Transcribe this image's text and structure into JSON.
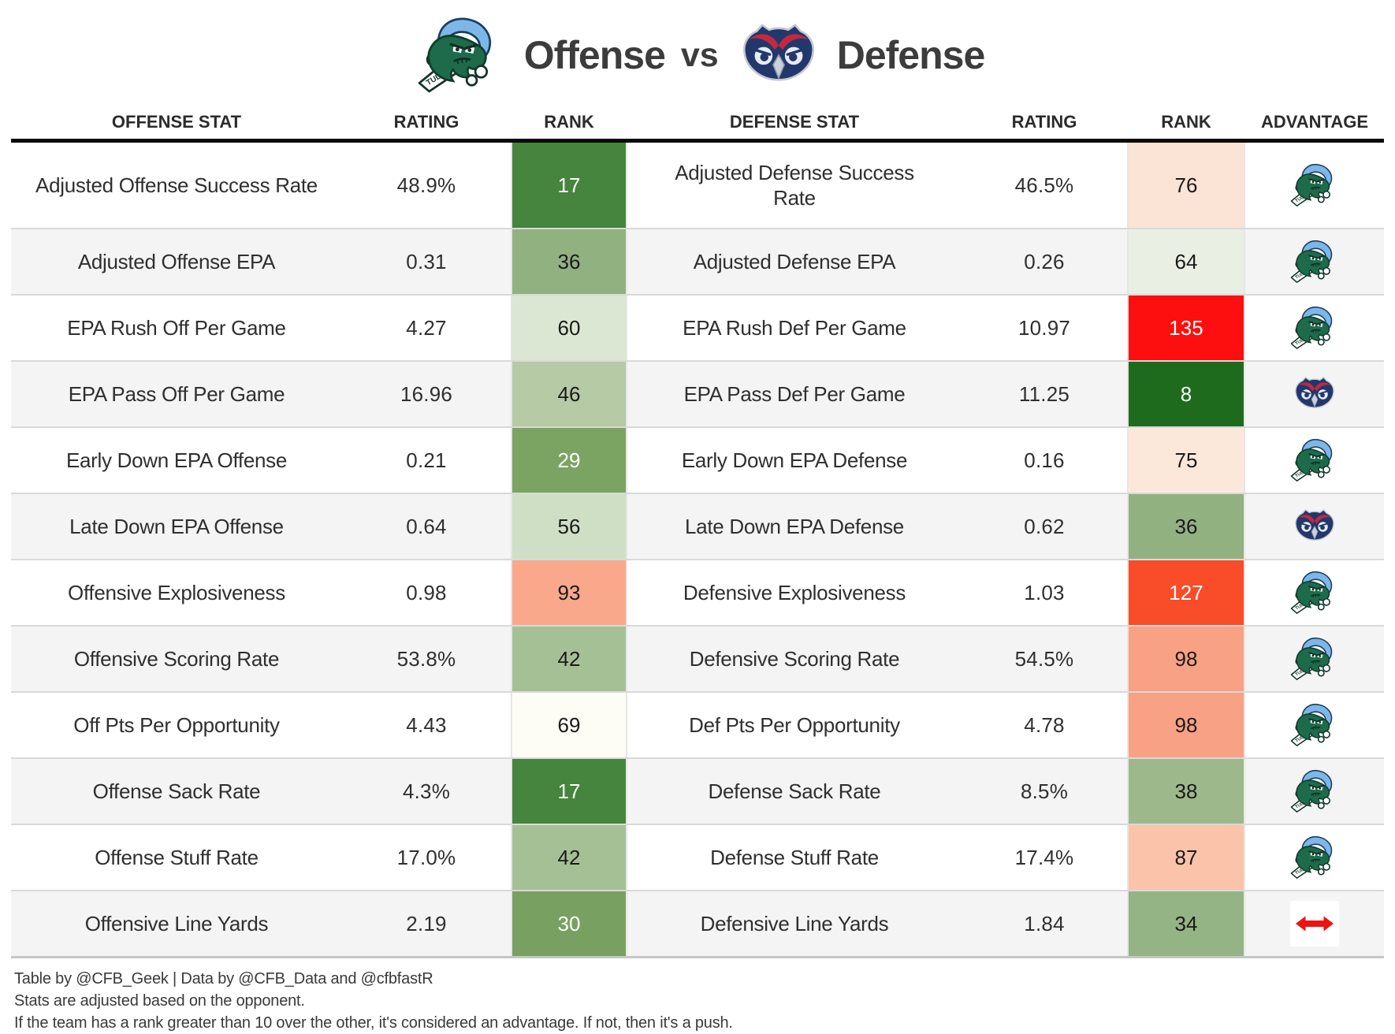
{
  "title": {
    "left_logo": "tulane-green-wave-logo",
    "left_label": "Offense",
    "vs_label": "vs",
    "right_logo": "fau-owls-logo",
    "right_label": "Defense"
  },
  "chart_data": {
    "type": "table",
    "columns": [
      "OFFENSE STAT",
      "RATING",
      "RANK",
      "DEFENSE STAT",
      "RATING",
      "RANK",
      "ADVANTAGE"
    ],
    "rows": [
      {
        "offense_stat": "Adjusted Offense Success Rate",
        "offense_rating": "48.9%",
        "offense_rank": "17",
        "offense_rank_bg": "#45853d",
        "offense_rank_color": "#ffffff",
        "defense_stat": "Adjusted Defense Success Rate",
        "defense_rating": "46.5%",
        "defense_rank": "76",
        "defense_rank_bg": "#fbe3d5",
        "defense_rank_color": "#1a1a1a",
        "advantage": "offense"
      },
      {
        "offense_stat": "Adjusted Offense EPA",
        "offense_rating": "0.31",
        "offense_rank": "36",
        "offense_rank_bg": "#92b181",
        "offense_rank_color": "#1a1a1a",
        "defense_stat": "Adjusted Defense EPA",
        "defense_rating": "0.26",
        "defense_rank": "64",
        "defense_rank_bg": "#e9efe3",
        "defense_rank_color": "#1a1a1a",
        "advantage": "offense"
      },
      {
        "offense_stat": "EPA Rush Off Per Game",
        "offense_rating": "4.27",
        "offense_rank": "60",
        "offense_rank_bg": "#dbe7d2",
        "offense_rank_color": "#1a1a1a",
        "defense_stat": "EPA Rush Def Per Game",
        "defense_rating": "10.97",
        "defense_rank": "135",
        "defense_rank_bg": "#fc0f0e",
        "defense_rank_color": "#ffffff",
        "advantage": "offense"
      },
      {
        "offense_stat": "EPA Pass Off Per Game",
        "offense_rating": "16.96",
        "offense_rank": "46",
        "offense_rank_bg": "#b5caa5",
        "offense_rank_color": "#1a1a1a",
        "defense_stat": "EPA Pass Def Per Game",
        "defense_rating": "11.25",
        "defense_rank": "8",
        "defense_rank_bg": "#1e6b1d",
        "defense_rank_color": "#ffffff",
        "advantage": "defense"
      },
      {
        "offense_stat": "Early Down EPA Offense",
        "offense_rating": "0.21",
        "offense_rank": "29",
        "offense_rank_bg": "#7ba463",
        "offense_rank_color": "#ffffff",
        "defense_stat": "Early Down EPA Defense",
        "defense_rating": "0.16",
        "defense_rank": "75",
        "defense_rank_bg": "#fce8db",
        "defense_rank_color": "#1a1a1a",
        "advantage": "offense"
      },
      {
        "offense_stat": "Late Down EPA Offense",
        "offense_rating": "0.64",
        "offense_rank": "56",
        "offense_rank_bg": "#cfdfc6",
        "offense_rank_color": "#1a1a1a",
        "defense_stat": "Late Down EPA Defense",
        "defense_rating": "0.62",
        "defense_rank": "36",
        "defense_rank_bg": "#92b181",
        "defense_rank_color": "#1a1a1a",
        "advantage": "defense"
      },
      {
        "offense_stat": "Offensive Explosiveness",
        "offense_rating": "0.98",
        "offense_rank": "93",
        "offense_rank_bg": "#f9a88c",
        "offense_rank_color": "#1a1a1a",
        "defense_stat": "Defensive Explosiveness",
        "defense_rating": "1.03",
        "defense_rank": "127",
        "defense_rank_bg": "#f94c28",
        "defense_rank_color": "#ffffff",
        "advantage": "offense"
      },
      {
        "offense_stat": "Offensive Scoring Rate",
        "offense_rating": "53.8%",
        "offense_rank": "42",
        "offense_rank_bg": "#a6c095",
        "offense_rank_color": "#1a1a1a",
        "defense_stat": "Defensive Scoring Rate",
        "defense_rating": "54.5%",
        "defense_rank": "98",
        "defense_rank_bg": "#f9a184",
        "defense_rank_color": "#1a1a1a",
        "advantage": "offense"
      },
      {
        "offense_stat": "Off Pts Per Opportunity",
        "offense_rating": "4.43",
        "offense_rank": "69",
        "offense_rank_bg": "#fdfcf5",
        "offense_rank_color": "#1a1a1a",
        "defense_stat": "Def Pts Per Opportunity",
        "defense_rating": "4.78",
        "defense_rank": "98",
        "defense_rank_bg": "#f9a184",
        "defense_rank_color": "#1a1a1a",
        "advantage": "offense"
      },
      {
        "offense_stat": "Offense Sack Rate",
        "offense_rating": "4.3%",
        "offense_rank": "17",
        "offense_rank_bg": "#45853d",
        "offense_rank_color": "#ffffff",
        "defense_stat": "Defense Sack Rate",
        "defense_rating": "8.5%",
        "defense_rank": "38",
        "defense_rank_bg": "#9db98c",
        "defense_rank_color": "#1a1a1a",
        "advantage": "offense"
      },
      {
        "offense_stat": "Offense Stuff Rate",
        "offense_rating": "17.0%",
        "offense_rank": "42",
        "offense_rank_bg": "#a6c095",
        "offense_rank_color": "#1a1a1a",
        "defense_stat": "Defense Stuff Rate",
        "defense_rating": "17.4%",
        "defense_rank": "87",
        "defense_rank_bg": "#fbc3a9",
        "defense_rank_color": "#1a1a1a",
        "advantage": "offense"
      },
      {
        "offense_stat": "Offensive Line Yards",
        "offense_rating": "2.19",
        "offense_rank": "30",
        "offense_rank_bg": "#78a161",
        "offense_rank_color": "#ffffff",
        "defense_stat": "Defensive Line Yards",
        "defense_rating": "1.84",
        "defense_rank": "34",
        "defense_rank_bg": "#95b485",
        "defense_rank_color": "#1a1a1a",
        "advantage": "push"
      }
    ]
  },
  "advantage_icons": {
    "offense": "tulane-green-wave-logo",
    "defense": "fau-owls-logo",
    "push": "push-red-double-arrow-icon"
  },
  "colors": {
    "push_arrow": "#ee1212",
    "header_rule": "#0b0b0b",
    "row_alt_bg": "#f4f4f4",
    "row_separator": "#d9d9d9"
  },
  "footnotes": [
    "Table by @CFB_Geek | Data by @CFB_Data and @cfbfastR",
    "Stats are adjusted based on the opponent.",
    "If the team has a rank greater than 10 over the other, it's considered an advantage. If not, then it's a push."
  ]
}
